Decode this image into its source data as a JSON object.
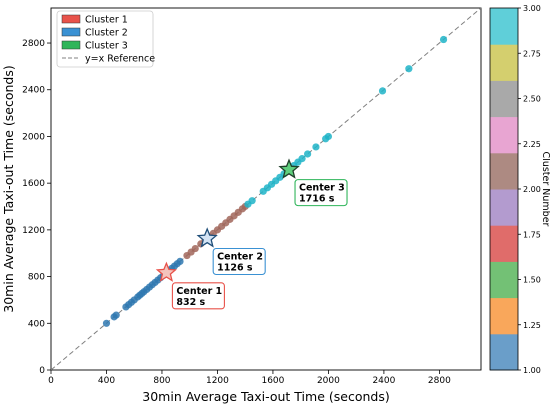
{
  "chart_data": {
    "type": "scatter",
    "xlabel": "30min Average Taxi-out Time (seconds)",
    "ylabel": "30min Average Taxi-out Time (seconds)",
    "xlim": [
      0,
      3100
    ],
    "ylim": [
      0,
      3100
    ],
    "xticks": [
      0,
      400,
      800,
      1200,
      1600,
      2000,
      2400,
      2800
    ],
    "yticks": [
      0,
      400,
      800,
      1200,
      1600,
      2000,
      2400,
      2800
    ],
    "grid": false,
    "legend_position": "top-left",
    "legend": [
      {
        "label": "Cluster 1",
        "color": "#e8524a",
        "kind": "patch"
      },
      {
        "label": "Cluster 2",
        "color": "#3a91d3",
        "kind": "patch"
      },
      {
        "label": "Cluster 3",
        "color": "#2fb55a",
        "kind": "patch"
      },
      {
        "label": "y=x Reference",
        "color": "#808080",
        "kind": "dashed-line"
      }
    ],
    "series": [
      {
        "cluster": 1,
        "color": "#2f78b0",
        "x": [
          400,
          455,
          470,
          540,
          560,
          580,
          600,
          625,
          640,
          655,
          670,
          690,
          710,
          730,
          750,
          770,
          790,
          810,
          832,
          850,
          870,
          890,
          910,
          930
        ],
        "y": [
          400,
          455,
          470,
          540,
          560,
          580,
          600,
          625,
          640,
          655,
          670,
          690,
          710,
          730,
          750,
          770,
          790,
          810,
          832,
          850,
          870,
          890,
          910,
          930
        ]
      },
      {
        "cluster": 2,
        "color": "#a1665b",
        "x": [
          980,
          1010,
          1040,
          1080,
          1110,
          1140,
          1170,
          1200,
          1230,
          1260,
          1290,
          1320,
          1350,
          1380,
          1400
        ],
        "y": [
          980,
          1010,
          1040,
          1080,
          1110,
          1140,
          1170,
          1200,
          1230,
          1260,
          1290,
          1320,
          1350,
          1380,
          1400
        ]
      },
      {
        "cluster": 3,
        "color": "#1fb4c8",
        "x": [
          1420,
          1450,
          1530,
          1560,
          1590,
          1620,
          1650,
          1680,
          1720,
          1750,
          1780,
          1810,
          1850,
          1910,
          1980,
          2000,
          2390,
          2580,
          2830
        ],
        "y": [
          1420,
          1450,
          1530,
          1560,
          1590,
          1620,
          1650,
          1680,
          1720,
          1750,
          1780,
          1810,
          1850,
          1910,
          1980,
          2000,
          2390,
          2580,
          2830
        ]
      }
    ],
    "centers": [
      {
        "name": "Center 1",
        "value_label": "832 s",
        "value": 832,
        "edge": "#e8524a",
        "fill": "#f4c4bd"
      },
      {
        "name": "Center 2",
        "value_label": "1126 s",
        "value": 1126,
        "edge": "#1f4e79",
        "fill": "#d3e3f4"
      },
      {
        "name": "Center 3",
        "value_label": "1716 s",
        "value": 1716,
        "edge": "#1f3f2a",
        "fill": "#5fcf7d"
      }
    ],
    "annotation_borders": [
      "#e8524a",
      "#3a91d3",
      "#2fb55a"
    ],
    "colorbar": {
      "label": "Cluster Number",
      "range": [
        1.0,
        3.0
      ],
      "ticks": [
        "1.00",
        "1.25",
        "1.50",
        "1.75",
        "2.00",
        "2.25",
        "2.50",
        "2.75",
        "3.00"
      ],
      "colors": [
        "#6a9ec9",
        "#f9a75b",
        "#73c175",
        "#e06c6a",
        "#b39bcf",
        "#ad8a82",
        "#e8a5d2",
        "#a9a9a9",
        "#d4cf6e",
        "#5fcfd9"
      ]
    }
  }
}
